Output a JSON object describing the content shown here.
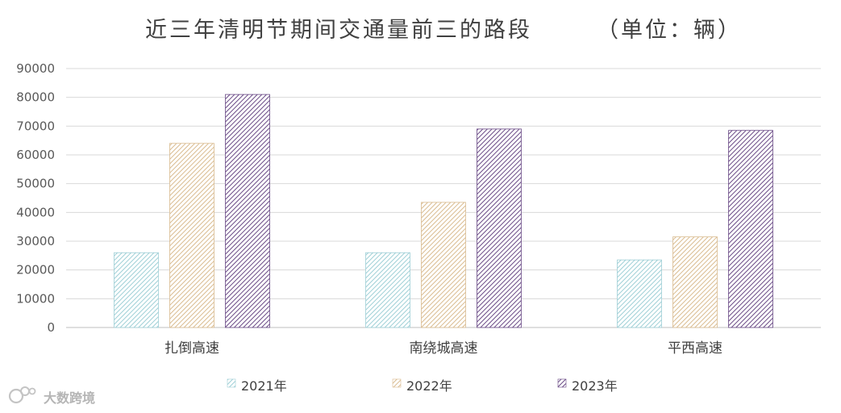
{
  "chart_data": {
    "type": "bar",
    "title": "近三年清明节期间交通量前三的路段",
    "unit_note": "（单位：辆）",
    "categories": [
      "扎倒高速",
      "南绕城高速",
      "平西高速"
    ],
    "series": [
      {
        "name": "2021年",
        "values": [
          26000,
          26000,
          23500
        ],
        "color": "#9ecfd6"
      },
      {
        "name": "2022年",
        "values": [
          64000,
          43500,
          31500
        ],
        "color": "#d9bb8f"
      },
      {
        "name": "2023年",
        "values": [
          81000,
          69000,
          68500
        ],
        "color": "#6a4a86"
      }
    ],
    "ylim": [
      0,
      90000
    ],
    "yticks": [
      0,
      10000,
      20000,
      30000,
      40000,
      50000,
      60000,
      70000,
      80000,
      90000
    ],
    "grid": true,
    "legend_position": "bottom",
    "bar_pattern": "diagonal-hatch"
  },
  "watermark": {
    "text": "大数跨境",
    "icon": "logo-mark-icon"
  }
}
